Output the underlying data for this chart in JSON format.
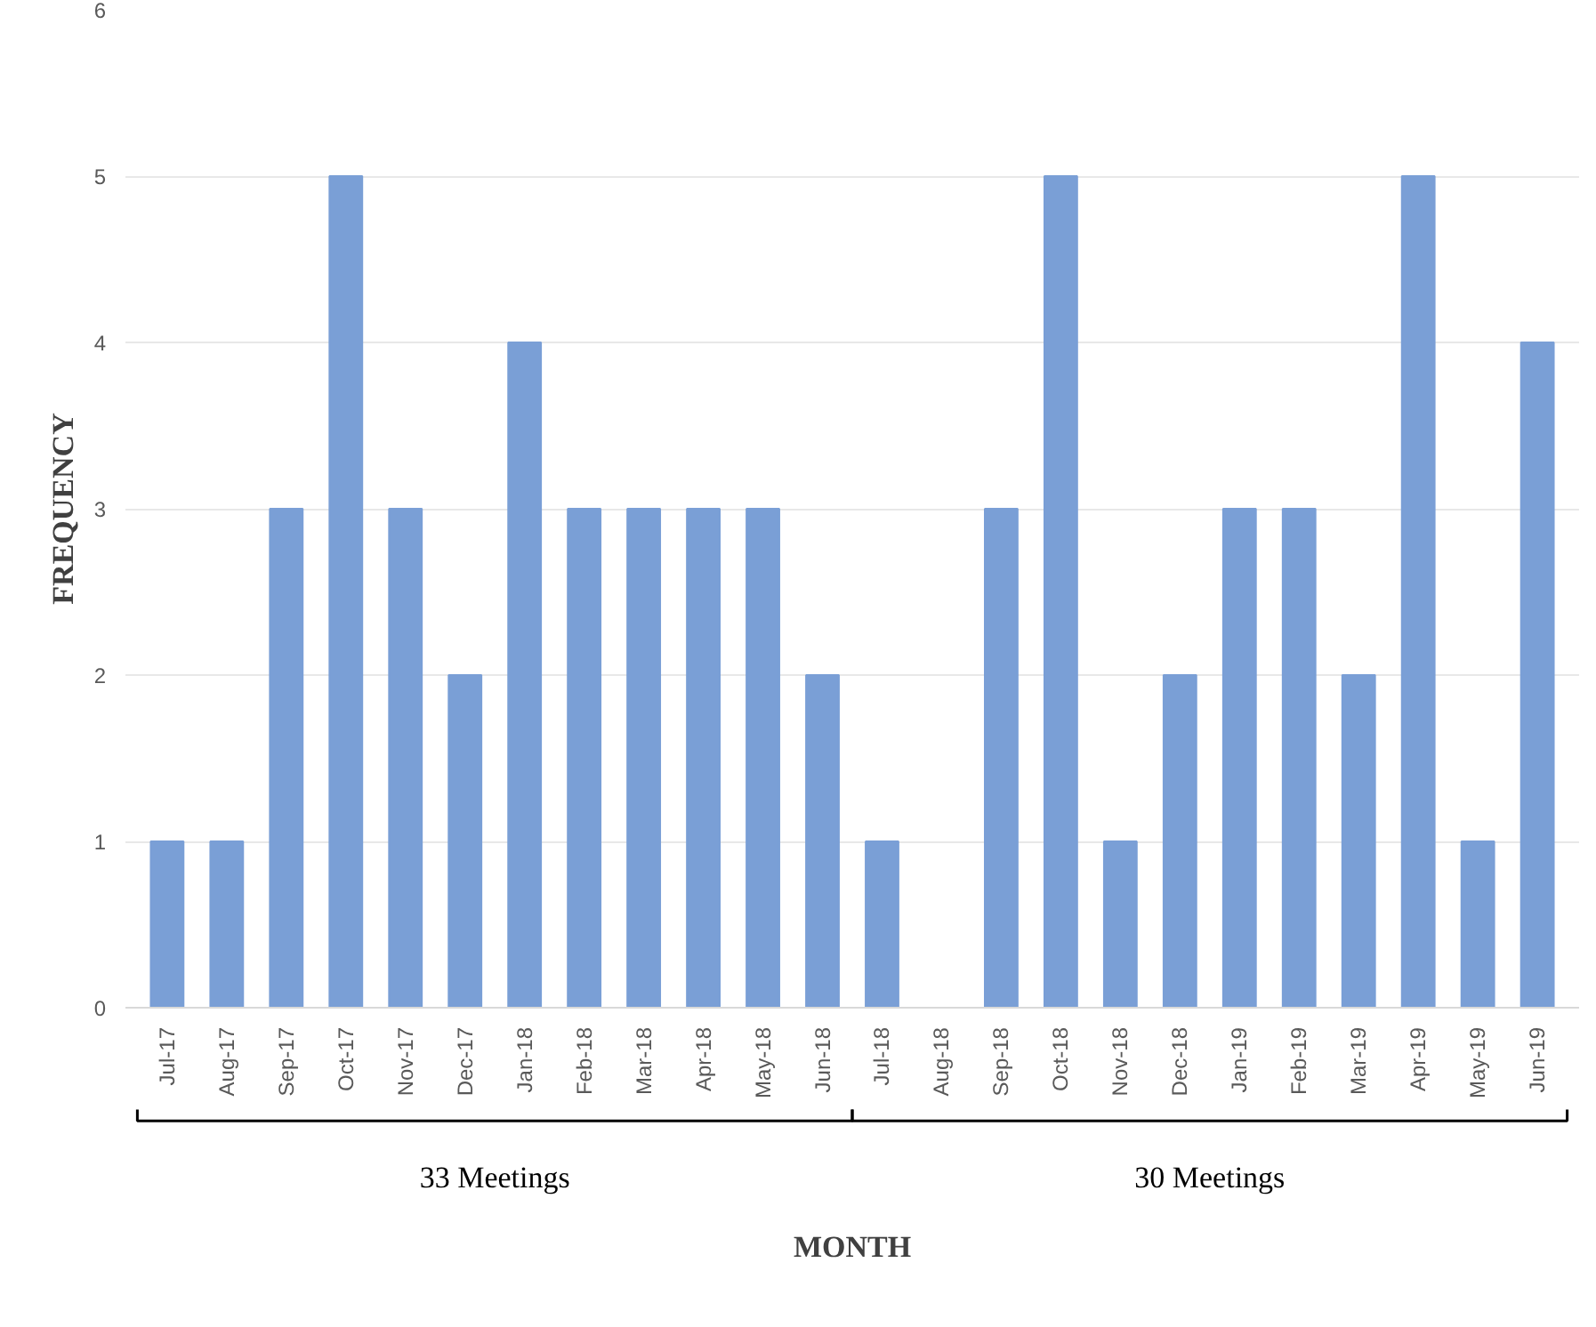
{
  "chart_data": {
    "type": "bar",
    "xlabel": "MONTH",
    "ylabel": "FREQUENCY",
    "categories": [
      "Jul-17",
      "Aug-17",
      "Sep-17",
      "Oct-17",
      "Nov-17",
      "Dec-17",
      "Jan-18",
      "Feb-18",
      "Mar-18",
      "Apr-18",
      "May-18",
      "Jun-18",
      "Jul-18",
      "Aug-18",
      "Sep-18",
      "Oct-18",
      "Nov-18",
      "Dec-18",
      "Jan-19",
      "Feb-19",
      "Mar-19",
      "Apr-19",
      "May-19",
      "Jun-19"
    ],
    "values": [
      1,
      1,
      3,
      5,
      3,
      2,
      4,
      3,
      3,
      3,
      3,
      2,
      1,
      0,
      3,
      5,
      1,
      2,
      3,
      3,
      2,
      5,
      1,
      4
    ],
    "color": "#7a9fd6",
    "ylim": [
      0,
      6
    ],
    "yticks": [
      0,
      1,
      2,
      3,
      4,
      5,
      6
    ],
    "grid": "y",
    "annotations": [
      "33 Meetings",
      "30 Meetings"
    ]
  }
}
